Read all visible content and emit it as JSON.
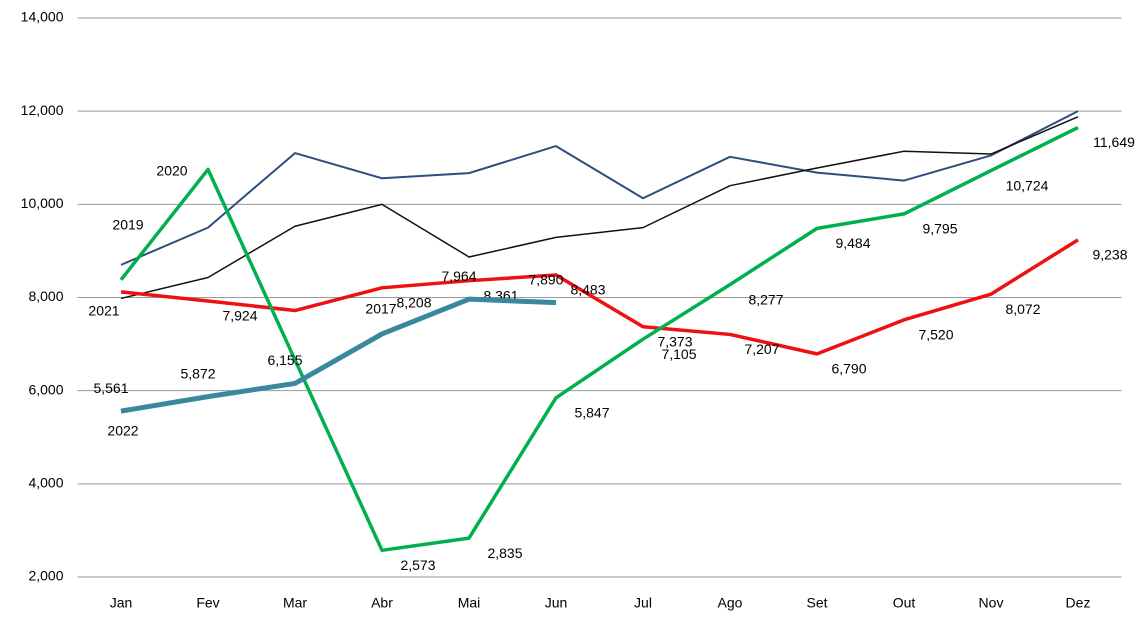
{
  "chart_data": {
    "type": "line",
    "categories": [
      "Jan",
      "Fev",
      "Mar",
      "Abr",
      "Mai",
      "Jun",
      "Jul",
      "Ago",
      "Set",
      "Out",
      "Nov",
      "Dez"
    ],
    "ylim": [
      2000,
      14000
    ],
    "yticks": [
      {
        "value": 2000,
        "label": "2,000"
      },
      {
        "value": 4000,
        "label": "4,000"
      },
      {
        "value": 6000,
        "label": "6,000"
      },
      {
        "value": 8000,
        "label": "8,000"
      },
      {
        "value": 10000,
        "label": "10,000"
      },
      {
        "value": 12000,
        "label": "12,000"
      },
      {
        "value": 14000,
        "label": "14,000"
      }
    ],
    "grid": true,
    "series": [
      {
        "name": "2019",
        "color": "#2e4e7e",
        "values": [
          8700,
          9500,
          11100,
          10560,
          10670,
          11250,
          10130,
          11020,
          10680,
          10510,
          11050,
          12000
        ]
      },
      {
        "name": "2021",
        "color": "#111111",
        "values": [
          7980,
          8430,
          9530,
          10000,
          8870,
          9290,
          9500,
          10400,
          10780,
          11140,
          11080,
          11880
        ]
      },
      {
        "name": "2017",
        "color": "#ee1111",
        "values": [
          8120,
          7924,
          7720,
          8208,
          8361,
          8483,
          7373,
          7207,
          6790,
          7520,
          8072,
          9238
        ],
        "value_labels": [
          null,
          "7,924",
          null,
          "8,208",
          "8,361",
          "8,483",
          "7,373",
          "7,207",
          "6,790",
          "7,520",
          "8,072",
          "9,238"
        ]
      },
      {
        "name": "2020",
        "color": "#00b050",
        "values": [
          8380,
          10750,
          6660,
          2573,
          2835,
          5847,
          7105,
          8277,
          9484,
          9795,
          10724,
          11649
        ],
        "value_labels": [
          null,
          null,
          null,
          "2,573",
          "2,835",
          "5,847",
          "7,105",
          "8,277",
          "9,484",
          "9,795",
          "10,724",
          "11,649"
        ]
      },
      {
        "name": "2022",
        "color": "#3a87a0",
        "values": [
          5561,
          5872,
          6155,
          7217,
          7964,
          7890,
          null,
          null,
          null,
          null,
          null,
          null
        ],
        "value_labels": [
          "5,561",
          "5,872",
          "6,155",
          null,
          "7,964",
          "7,890",
          null,
          null,
          null,
          null,
          null,
          null
        ]
      }
    ]
  }
}
